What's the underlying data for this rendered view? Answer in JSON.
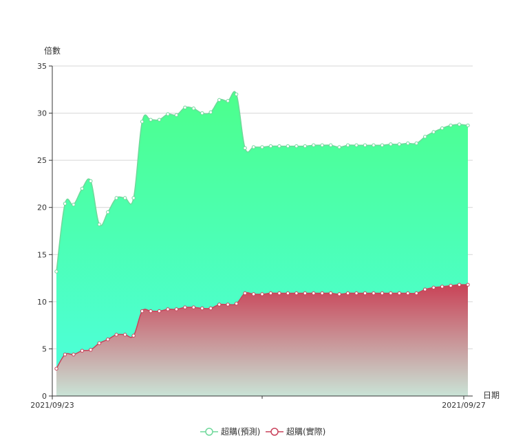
{
  "chart_data": {
    "type": "area",
    "title": "",
    "xlabel": "日期",
    "ylabel": "倍數",
    "ylim": [
      0,
      35
    ],
    "yticks": [
      0,
      5,
      10,
      15,
      20,
      25,
      30,
      35
    ],
    "x_tick_labels": [
      "2021/09/23",
      "2021/09/27"
    ],
    "grid": true,
    "legend_position": "bottom-center",
    "series": [
      {
        "name": "超購(預測)",
        "color": "#6fd89a",
        "fill_top": "#4cff8c",
        "fill_bottom": "#4dffe0",
        "values": [
          13.2,
          20.4,
          20.3,
          22.0,
          22.8,
          18.2,
          19.5,
          21.0,
          21.0,
          21.0,
          29.1,
          29.3,
          29.3,
          29.9,
          29.8,
          30.6,
          30.5,
          30.0,
          30.1,
          31.4,
          31.3,
          32.0,
          26.3,
          26.4,
          26.4,
          26.5,
          26.5,
          26.5,
          26.5,
          26.5,
          26.6,
          26.6,
          26.6,
          26.4,
          26.6,
          26.6,
          26.6,
          26.6,
          26.6,
          26.7,
          26.7,
          26.8,
          26.8,
          27.5,
          28.0,
          28.4,
          28.7,
          28.8,
          28.7
        ]
      },
      {
        "name": "超購(實際)",
        "color": "#c9415a",
        "fill_top": "#c94357",
        "fill_bottom": "#c9e3d6",
        "values": [
          2.9,
          4.4,
          4.4,
          4.8,
          4.9,
          5.6,
          6.0,
          6.5,
          6.5,
          6.4,
          9.0,
          9.0,
          9.0,
          9.2,
          9.2,
          9.4,
          9.4,
          9.3,
          9.3,
          9.7,
          9.7,
          9.8,
          10.9,
          10.8,
          10.8,
          10.9,
          10.9,
          10.9,
          10.9,
          10.9,
          10.9,
          10.9,
          10.9,
          10.8,
          10.9,
          10.9,
          10.9,
          10.9,
          10.9,
          10.9,
          10.9,
          10.9,
          10.9,
          11.3,
          11.5,
          11.6,
          11.7,
          11.8,
          11.8
        ]
      }
    ]
  }
}
